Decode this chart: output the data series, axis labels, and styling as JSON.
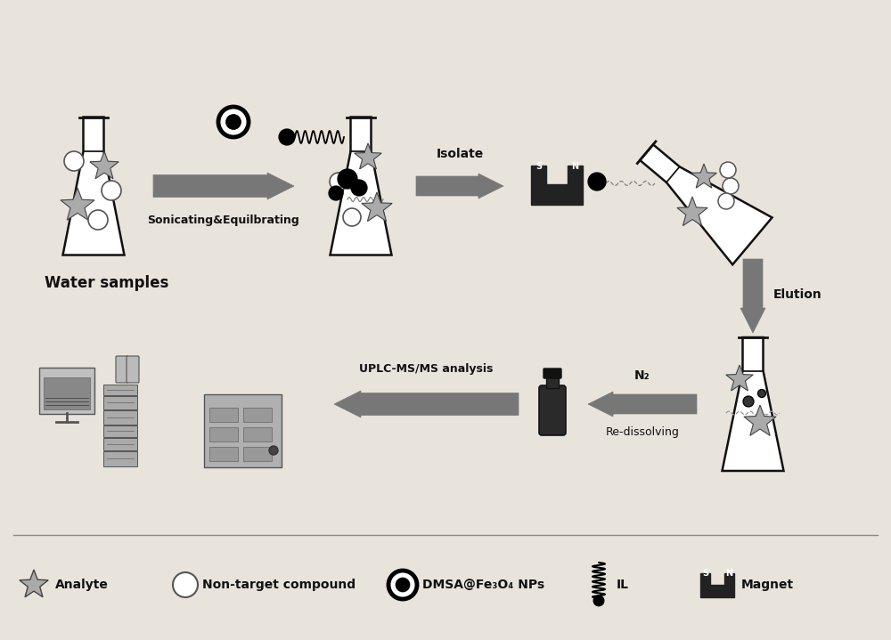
{
  "bg_color": "#e8e4dc",
  "flask1_label": "Water samples",
  "arrow1_label": "Sonicating&Equilbrating",
  "arrow2_label": "Isolate",
  "arrow3_label": "Elution",
  "arrow4_label": "N₂",
  "arrow4b_label": "Re-dissolving",
  "arrow5_label": "UPLC-MS/MS analysis",
  "legend_items": [
    "Analyte",
    "Non-target compound",
    "DMSA@Fe₃O₄ NPs",
    "IL",
    "Magnet"
  ],
  "arrow_color": "#777777",
  "dark_gray": "#444444",
  "mid_gray": "#888888",
  "star_fill": "#aaaaaa",
  "star_edge": "#444444",
  "black": "#111111",
  "white": "#ffffff",
  "magnet_color": "#222222",
  "flask_lw": 1.8
}
